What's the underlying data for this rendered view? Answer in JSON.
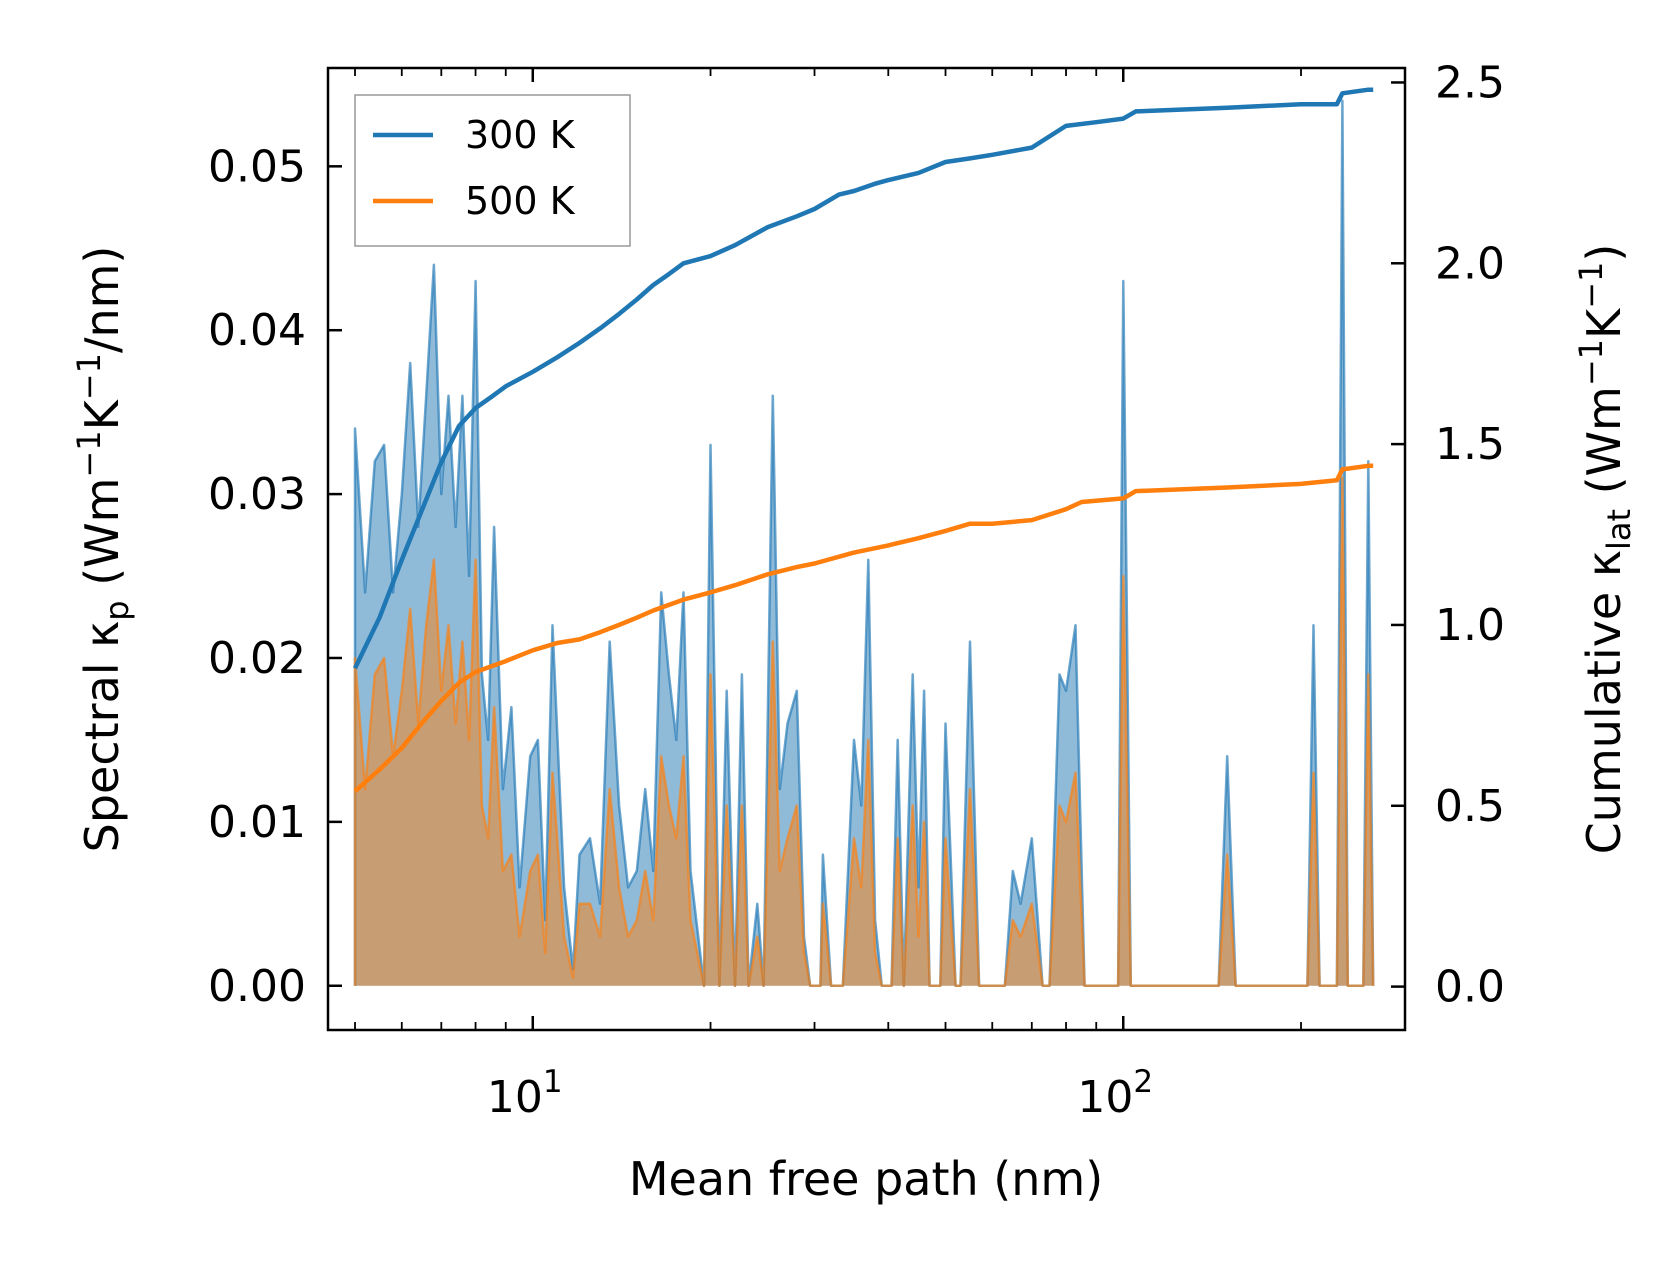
{
  "chart_data": {
    "type": "line",
    "xscale": "log",
    "xlabel": "Mean free path (nm)",
    "ylabel_left": {
      "prefix": "Spectral κ",
      "sub": "p",
      "units": " (Wm",
      "sup1": "−1",
      "mid": "K",
      "sup2": "−1",
      "tail": "/nm)"
    },
    "ylabel_right": {
      "prefix": "Cumulative κ",
      "sub": "lat",
      "units": " (Wm",
      "sup1": "−1",
      "mid": "K",
      "sup2": "−1",
      "tail": ")"
    },
    "xlim": [
      4.5,
      300
    ],
    "ylim_left": [
      -0.0027,
      0.056
    ],
    "ylim_right": [
      -0.12,
      2.54
    ],
    "x_ticks": [
      {
        "base": "10",
        "exp": "1",
        "value": 10
      },
      {
        "base": "10",
        "exp": "2",
        "value": 100
      }
    ],
    "y_ticks_left": [
      {
        "value": 0.0,
        "label": "0.00"
      },
      {
        "value": 0.01,
        "label": "0.01"
      },
      {
        "value": 0.02,
        "label": "0.02"
      },
      {
        "value": 0.03,
        "label": "0.03"
      },
      {
        "value": 0.04,
        "label": "0.04"
      },
      {
        "value": 0.05,
        "label": "0.05"
      }
    ],
    "y_ticks_right": [
      {
        "value": 0.0,
        "label": "0.0"
      },
      {
        "value": 0.5,
        "label": "0.5"
      },
      {
        "value": 1.0,
        "label": "1.0"
      },
      {
        "value": 1.5,
        "label": "1.5"
      },
      {
        "value": 2.0,
        "label": "2.0"
      },
      {
        "value": 2.5,
        "label": "2.5"
      }
    ],
    "legend": {
      "location": "top-left"
    },
    "series": [
      {
        "name": "300 K",
        "color": "#1f77b4",
        "fill_color": "#1f77b4",
        "spectral": [
          [
            5.0,
            0.0
          ],
          [
            5.0,
            0.034
          ],
          [
            5.2,
            0.024
          ],
          [
            5.4,
            0.032
          ],
          [
            5.6,
            0.033
          ],
          [
            5.8,
            0.024
          ],
          [
            6.0,
            0.03
          ],
          [
            6.2,
            0.038
          ],
          [
            6.4,
            0.028
          ],
          [
            6.6,
            0.036
          ],
          [
            6.8,
            0.044
          ],
          [
            7.0,
            0.03
          ],
          [
            7.2,
            0.036
          ],
          [
            7.4,
            0.028
          ],
          [
            7.6,
            0.036
          ],
          [
            7.8,
            0.025
          ],
          [
            8.0,
            0.043
          ],
          [
            8.2,
            0.019
          ],
          [
            8.4,
            0.015
          ],
          [
            8.6,
            0.028
          ],
          [
            8.9,
            0.012
          ],
          [
            9.2,
            0.017
          ],
          [
            9.5,
            0.006
          ],
          [
            9.9,
            0.014
          ],
          [
            10.2,
            0.015
          ],
          [
            10.5,
            0.004
          ],
          [
            10.8,
            0.022
          ],
          [
            11.3,
            0.006
          ],
          [
            11.7,
            0.001
          ],
          [
            12.0,
            0.008
          ],
          [
            12.5,
            0.009
          ],
          [
            13.0,
            0.005
          ],
          [
            13.5,
            0.021
          ],
          [
            14.0,
            0.011
          ],
          [
            14.5,
            0.006
          ],
          [
            15.0,
            0.007
          ],
          [
            15.5,
            0.012
          ],
          [
            16.0,
            0.007
          ],
          [
            16.5,
            0.024
          ],
          [
            17.0,
            0.019
          ],
          [
            17.5,
            0.015
          ],
          [
            18.0,
            0.024
          ],
          [
            18.5,
            0.007
          ],
          [
            19.5,
            0.0
          ],
          [
            20.0,
            0.033
          ],
          [
            20.7,
            0.0
          ],
          [
            21.3,
            0.018
          ],
          [
            22.0,
            0.0
          ],
          [
            22.6,
            0.019
          ],
          [
            23.2,
            0.0
          ],
          [
            24.0,
            0.005
          ],
          [
            24.6,
            0.0
          ],
          [
            25.5,
            0.036
          ],
          [
            26.2,
            0.012
          ],
          [
            27.0,
            0.016
          ],
          [
            28.0,
            0.018
          ],
          [
            28.8,
            0.003
          ],
          [
            29.5,
            0.0
          ],
          [
            30.0,
            0.0
          ],
          [
            30.7,
            0.0
          ],
          [
            31.0,
            0.008
          ],
          [
            32.0,
            0.0
          ],
          [
            33.5,
            0.0
          ],
          [
            35.0,
            0.015
          ],
          [
            36.0,
            0.011
          ],
          [
            37.0,
            0.026
          ],
          [
            38.0,
            0.004
          ],
          [
            39.0,
            0.0
          ],
          [
            40.5,
            0.0
          ],
          [
            41.5,
            0.015
          ],
          [
            42.5,
            0.0
          ],
          [
            44.0,
            0.019
          ],
          [
            45.0,
            0.006
          ],
          [
            46.0,
            0.018
          ],
          [
            47.0,
            0.0
          ],
          [
            49.0,
            0.0
          ],
          [
            50.0,
            0.016
          ],
          [
            52.0,
            0.0
          ],
          [
            53.0,
            0.0
          ],
          [
            55.0,
            0.021
          ],
          [
            57.0,
            0.0
          ],
          [
            60.0,
            0.0
          ],
          [
            63.0,
            0.0
          ],
          [
            65.0,
            0.007
          ],
          [
            67.0,
            0.005
          ],
          [
            70.0,
            0.009
          ],
          [
            73.0,
            0.0
          ],
          [
            75.0,
            0.0
          ],
          [
            78.0,
            0.019
          ],
          [
            80.0,
            0.018
          ],
          [
            83.0,
            0.022
          ],
          [
            86.0,
            0.0
          ],
          [
            92.0,
            0.0
          ],
          [
            98.0,
            0.0
          ],
          [
            100.0,
            0.043
          ],
          [
            103.0,
            0.0
          ],
          [
            120.0,
            0.0
          ],
          [
            145.0,
            0.0
          ],
          [
            150.0,
            0.014
          ],
          [
            155.0,
            0.0
          ],
          [
            205.0,
            0.0
          ],
          [
            210.0,
            0.022
          ],
          [
            215.0,
            0.0
          ],
          [
            230.0,
            0.0
          ],
          [
            235.0,
            0.054
          ],
          [
            240.0,
            0.0
          ],
          [
            255.0,
            0.0
          ],
          [
            260.0,
            0.032
          ],
          [
            265.0,
            0.0
          ]
        ],
        "cumulative": [
          [
            5.0,
            0.88
          ],
          [
            5.5,
            1.02
          ],
          [
            6.0,
            1.18
          ],
          [
            6.5,
            1.32
          ],
          [
            7.0,
            1.45
          ],
          [
            7.5,
            1.55
          ],
          [
            8.0,
            1.6
          ],
          [
            8.5,
            1.63
          ],
          [
            9.0,
            1.66
          ],
          [
            10.0,
            1.7
          ],
          [
            11.0,
            1.74
          ],
          [
            12.0,
            1.78
          ],
          [
            13.0,
            1.82
          ],
          [
            14.0,
            1.86
          ],
          [
            15.0,
            1.9
          ],
          [
            16.0,
            1.94
          ],
          [
            17.0,
            1.97
          ],
          [
            18.0,
            2.0
          ],
          [
            20.0,
            2.02
          ],
          [
            22.0,
            2.05
          ],
          [
            25.0,
            2.1
          ],
          [
            28.0,
            2.13
          ],
          [
            30.0,
            2.15
          ],
          [
            33.0,
            2.19
          ],
          [
            35.0,
            2.2
          ],
          [
            38.0,
            2.22
          ],
          [
            40.0,
            2.23
          ],
          [
            45.0,
            2.25
          ],
          [
            50.0,
            2.28
          ],
          [
            55.0,
            2.29
          ],
          [
            60.0,
            2.3
          ],
          [
            70.0,
            2.32
          ],
          [
            80.0,
            2.38
          ],
          [
            90.0,
            2.39
          ],
          [
            100.0,
            2.4
          ],
          [
            105.0,
            2.42
          ],
          [
            150.0,
            2.43
          ],
          [
            200.0,
            2.44
          ],
          [
            230.0,
            2.44
          ],
          [
            235.0,
            2.47
          ],
          [
            260.0,
            2.48
          ],
          [
            265.0,
            2.48
          ]
        ]
      },
      {
        "name": "500 K",
        "color": "#ff7f0e",
        "fill_color": "#ff7f0e",
        "spectral": [
          [
            5.0,
            0.0
          ],
          [
            5.0,
            0.02
          ],
          [
            5.2,
            0.012
          ],
          [
            5.4,
            0.019
          ],
          [
            5.6,
            0.02
          ],
          [
            5.8,
            0.014
          ],
          [
            6.0,
            0.018
          ],
          [
            6.2,
            0.023
          ],
          [
            6.4,
            0.016
          ],
          [
            6.6,
            0.022
          ],
          [
            6.8,
            0.026
          ],
          [
            7.0,
            0.018
          ],
          [
            7.2,
            0.022
          ],
          [
            7.4,
            0.016
          ],
          [
            7.6,
            0.021
          ],
          [
            7.8,
            0.015
          ],
          [
            8.0,
            0.026
          ],
          [
            8.2,
            0.011
          ],
          [
            8.4,
            0.009
          ],
          [
            8.6,
            0.017
          ],
          [
            8.9,
            0.007
          ],
          [
            9.2,
            0.008
          ],
          [
            9.5,
            0.003
          ],
          [
            9.9,
            0.007
          ],
          [
            10.2,
            0.008
          ],
          [
            10.5,
            0.002
          ],
          [
            10.8,
            0.013
          ],
          [
            11.3,
            0.003
          ],
          [
            11.7,
            0.0005
          ],
          [
            12.0,
            0.005
          ],
          [
            12.5,
            0.005
          ],
          [
            13.0,
            0.003
          ],
          [
            13.5,
            0.012
          ],
          [
            14.0,
            0.006
          ],
          [
            14.5,
            0.003
          ],
          [
            15.0,
            0.004
          ],
          [
            15.5,
            0.007
          ],
          [
            16.0,
            0.004
          ],
          [
            16.5,
            0.014
          ],
          [
            17.0,
            0.011
          ],
          [
            17.5,
            0.009
          ],
          [
            18.0,
            0.014
          ],
          [
            18.5,
            0.004
          ],
          [
            19.5,
            0.0
          ],
          [
            20.0,
            0.019
          ],
          [
            20.7,
            0.0
          ],
          [
            21.3,
            0.011
          ],
          [
            22.0,
            0.0
          ],
          [
            22.6,
            0.011
          ],
          [
            23.2,
            0.0
          ],
          [
            24.0,
            0.003
          ],
          [
            24.6,
            0.0
          ],
          [
            25.5,
            0.021
          ],
          [
            26.2,
            0.007
          ],
          [
            27.0,
            0.009
          ],
          [
            28.0,
            0.011
          ],
          [
            28.8,
            0.002
          ],
          [
            29.5,
            0.0
          ],
          [
            30.0,
            0.0
          ],
          [
            30.7,
            0.0
          ],
          [
            31.0,
            0.005
          ],
          [
            32.0,
            0.0
          ],
          [
            33.5,
            0.0
          ],
          [
            35.0,
            0.009
          ],
          [
            36.0,
            0.006
          ],
          [
            37.0,
            0.015
          ],
          [
            38.0,
            0.002
          ],
          [
            39.0,
            0.0
          ],
          [
            40.5,
            0.0
          ],
          [
            41.5,
            0.009
          ],
          [
            42.5,
            0.0
          ],
          [
            44.0,
            0.011
          ],
          [
            45.0,
            0.003
          ],
          [
            46.0,
            0.01
          ],
          [
            47.0,
            0.0
          ],
          [
            49.0,
            0.0
          ],
          [
            50.0,
            0.009
          ],
          [
            52.0,
            0.0
          ],
          [
            53.0,
            0.0
          ],
          [
            55.0,
            0.012
          ],
          [
            57.0,
            0.0
          ],
          [
            60.0,
            0.0
          ],
          [
            63.0,
            0.0
          ],
          [
            65.0,
            0.004
          ],
          [
            67.0,
            0.003
          ],
          [
            70.0,
            0.005
          ],
          [
            73.0,
            0.0
          ],
          [
            75.0,
            0.0
          ],
          [
            78.0,
            0.011
          ],
          [
            80.0,
            0.01
          ],
          [
            83.0,
            0.013
          ],
          [
            86.0,
            0.0
          ],
          [
            92.0,
            0.0
          ],
          [
            98.0,
            0.0
          ],
          [
            100.0,
            0.025
          ],
          [
            103.0,
            0.0
          ],
          [
            120.0,
            0.0
          ],
          [
            145.0,
            0.0
          ],
          [
            150.0,
            0.008
          ],
          [
            155.0,
            0.0
          ],
          [
            205.0,
            0.0
          ],
          [
            210.0,
            0.013
          ],
          [
            215.0,
            0.0
          ],
          [
            230.0,
            0.0
          ],
          [
            235.0,
            0.031
          ],
          [
            240.0,
            0.0
          ],
          [
            255.0,
            0.0
          ],
          [
            260.0,
            0.019
          ],
          [
            265.0,
            0.0
          ]
        ],
        "cumulative": [
          [
            5.0,
            0.54
          ],
          [
            5.5,
            0.6
          ],
          [
            6.0,
            0.66
          ],
          [
            6.5,
            0.73
          ],
          [
            7.0,
            0.79
          ],
          [
            7.5,
            0.84
          ],
          [
            8.0,
            0.87
          ],
          [
            9.0,
            0.9
          ],
          [
            10.0,
            0.93
          ],
          [
            11.0,
            0.95
          ],
          [
            12.0,
            0.96
          ],
          [
            13.0,
            0.98
          ],
          [
            14.0,
            1.0
          ],
          [
            15.0,
            1.02
          ],
          [
            16.0,
            1.04
          ],
          [
            18.0,
            1.07
          ],
          [
            20.0,
            1.09
          ],
          [
            22.0,
            1.11
          ],
          [
            25.0,
            1.14
          ],
          [
            28.0,
            1.16
          ],
          [
            30.0,
            1.17
          ],
          [
            35.0,
            1.2
          ],
          [
            40.0,
            1.22
          ],
          [
            45.0,
            1.24
          ],
          [
            50.0,
            1.26
          ],
          [
            55.0,
            1.28
          ],
          [
            60.0,
            1.28
          ],
          [
            70.0,
            1.29
          ],
          [
            80.0,
            1.32
          ],
          [
            85.0,
            1.34
          ],
          [
            100.0,
            1.35
          ],
          [
            105.0,
            1.37
          ],
          [
            150.0,
            1.38
          ],
          [
            200.0,
            1.39
          ],
          [
            230.0,
            1.4
          ],
          [
            235.0,
            1.43
          ],
          [
            260.0,
            1.44
          ],
          [
            265.0,
            1.44
          ]
        ]
      }
    ]
  }
}
